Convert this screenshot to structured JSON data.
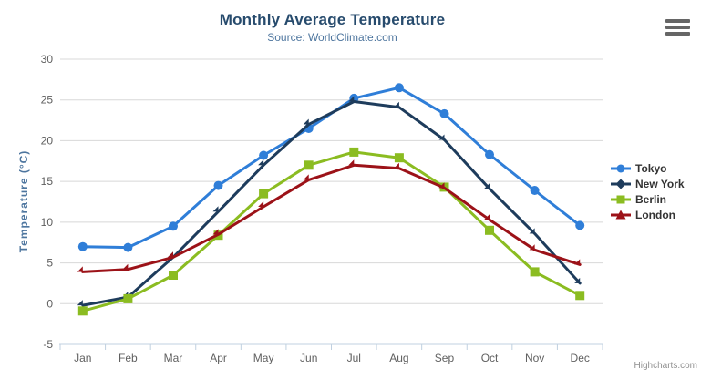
{
  "chart": {
    "credits": "Highcharts.com",
    "icons": {
      "export_menu": "hamburger-icon"
    },
    "colors": {
      "title": "#274b6d",
      "subtitle": "#4d759e",
      "axis_labels": "#606060",
      "gridline": "#d8d8d8",
      "axis_line": "#c0d0e0",
      "legend_text": "#333333"
    }
  },
  "chart_data": {
    "type": "line",
    "title": "Monthly Average Temperature",
    "subtitle": "Source: WorldClimate.com",
    "xlabel": "",
    "ylabel": "Temperature (°C)",
    "categories": [
      "Jan",
      "Feb",
      "Mar",
      "Apr",
      "May",
      "Jun",
      "Jul",
      "Aug",
      "Sep",
      "Oct",
      "Nov",
      "Dec"
    ],
    "ylim": [
      -5,
      30
    ],
    "yticks": [
      -5,
      0,
      5,
      10,
      15,
      20,
      25,
      30
    ],
    "grid": true,
    "legend_position": "right-middle",
    "series": [
      {
        "name": "Tokyo",
        "color": "#2f7ed8",
        "marker": "circle",
        "values": [
          7.0,
          6.9,
          9.5,
          14.5,
          18.2,
          21.5,
          25.2,
          26.5,
          23.3,
          18.3,
          13.9,
          9.6
        ]
      },
      {
        "name": "New York",
        "color": "#1e3c5c",
        "marker": "diamond",
        "values": [
          -0.2,
          0.8,
          5.7,
          11.3,
          17.0,
          22.0,
          24.8,
          24.1,
          20.1,
          14.1,
          8.6,
          2.5
        ]
      },
      {
        "name": "Berlin",
        "color": "#8bbc21",
        "marker": "square",
        "values": [
          -0.9,
          0.6,
          3.5,
          8.4,
          13.5,
          17.0,
          18.6,
          17.9,
          14.3,
          9.0,
          3.9,
          1.0
        ]
      },
      {
        "name": "London",
        "color": "#9c1218",
        "marker": "triangle",
        "values": [
          3.9,
          4.2,
          5.7,
          8.5,
          11.9,
          15.2,
          17.0,
          16.6,
          14.2,
          10.3,
          6.6,
          4.8
        ]
      }
    ]
  }
}
